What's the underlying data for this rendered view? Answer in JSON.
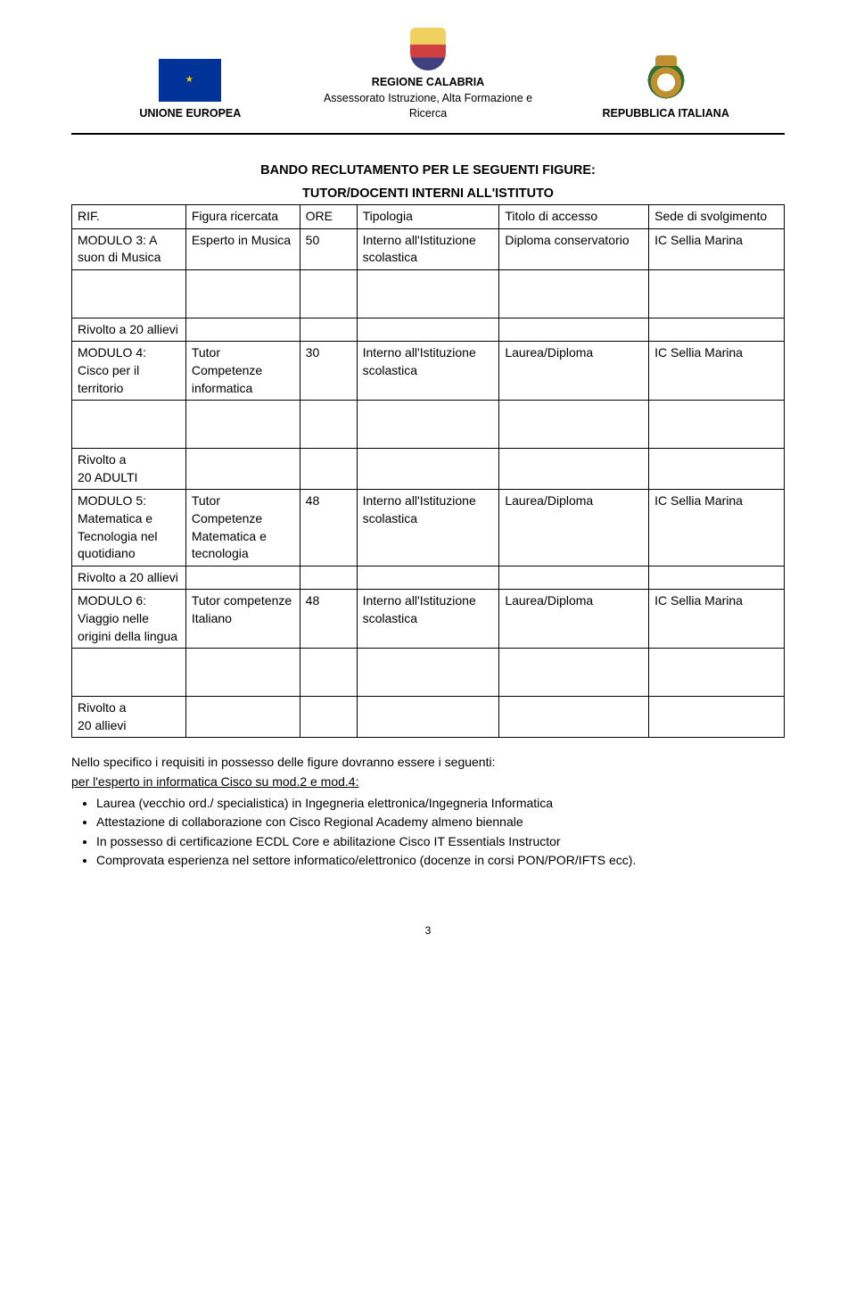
{
  "header": {
    "left_label": "UNIONE EUROPEA",
    "center_label": "REGIONE CALABRIA",
    "center_sub": "Assessorato Istruzione, Alta Formazione e Ricerca",
    "right_label": "REPUBBLICA ITALIANA"
  },
  "title_line1": "BANDO RECLUTAMENTO PER LE SEGUENTI FIGURE:",
  "title_line2": "TUTOR/DOCENTI INTERNI ALL'ISTITUTO",
  "table": {
    "head": {
      "rif": "RIF.",
      "figura": "Figura ricercata",
      "ore": "ORE",
      "tipologia": "Tipologia",
      "titolo": "Titolo di accesso",
      "sede": "Sede di svolgimento"
    },
    "rows": [
      {
        "rif": "MODULO 3: A suon di Musica",
        "figura": "Esperto in Musica",
        "ore": "50",
        "tipologia": "Interno all'Istituzione scolastica",
        "titolo": "Diploma conservatorio",
        "sede": "IC Sellia Marina"
      },
      {
        "rif_gap": "Rivolto a 20 allievi",
        "rif": "MODULO 4: Cisco per il territorio",
        "figura": "Tutor Competenze informatica",
        "ore": "30",
        "tipologia": "Interno all'Istituzione scolastica",
        "titolo": "Laurea/Diploma",
        "sede": "IC Sellia Marina"
      },
      {
        "rif_gap": "Rivolto a\n20 ADULTI",
        "rif": "MODULO 5: Matematica e Tecnologia nel quotidiano",
        "figura": "Tutor Competenze Matematica e tecnologia",
        "ore": "48",
        "tipologia": "Interno all'Istituzione scolastica",
        "titolo": "Laurea/Diploma",
        "sede": "IC Sellia Marina"
      },
      {
        "rif_gap_short": "Rivolto a 20 allievi",
        "rif": "MODULO 6: Viaggio nelle origini della lingua",
        "figura": "Tutor competenze Italiano",
        "ore": "48",
        "tipologia": "Interno all'Istituzione scolastica",
        "titolo": "Laurea/Diploma",
        "sede": "IC Sellia Marina"
      },
      {
        "rif_gap": "Rivolto a\n20 allievi"
      }
    ]
  },
  "requirements": {
    "intro": "Nello specifico i requisiti in possesso delle figure dovranno essere i seguenti:",
    "sub": "per l'esperto in informatica Cisco su mod.2 e mod.4:",
    "bullets": [
      "Laurea (vecchio ord./ specialistica) in  Ingegneria elettronica/Ingegneria Informatica",
      "Attestazione di collaborazione con Cisco Regional Academy almeno biennale",
      "In possesso di certificazione ECDL Core e abilitazione Cisco IT Essentials  Instructor",
      "Comprovata esperienza nel settore informatico/elettronico (docenze in corsi PON/POR/IFTS ecc)."
    ]
  },
  "page_number": "3"
}
